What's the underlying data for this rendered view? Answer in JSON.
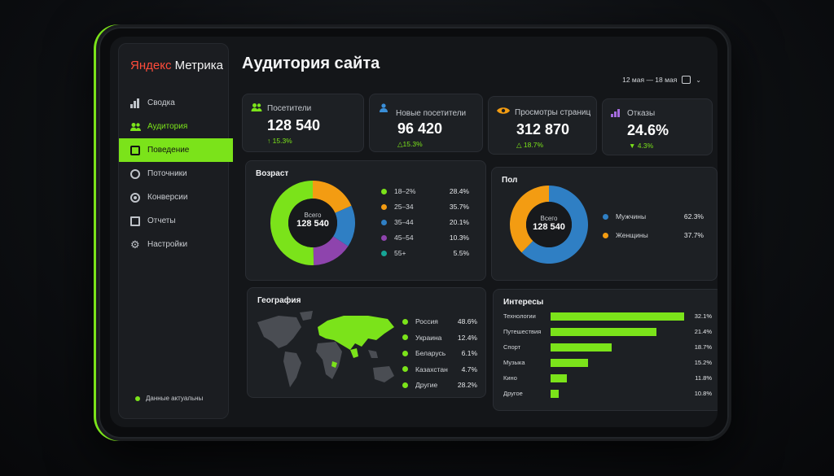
{
  "colors": {
    "accent": "#7be31a",
    "orange": "#f39c12",
    "blue": "#2f7fc4",
    "purple": "#8e44ad",
    "teal": "#16a596"
  },
  "sidebar": {
    "logo_brand": "Яндекс",
    "logo_product": "Метрика",
    "items": [
      {
        "label": "Сводка",
        "icon": "bar-chart-icon"
      },
      {
        "label": "Аудитория",
        "icon": "users-icon"
      },
      {
        "label": "Поведение",
        "icon": "square-icon"
      },
      {
        "label": "Поточники",
        "icon": "circle-icon"
      },
      {
        "label": "Конверсии",
        "icon": "target-icon"
      },
      {
        "label": "Отчеты",
        "icon": "document-icon"
      },
      {
        "label": "Настройки",
        "icon": "gear-icon"
      }
    ],
    "status": "Данные актуальны"
  },
  "header": {
    "title": "Аудитория сайта",
    "date_range": "12 мая — 18 мая"
  },
  "kpis": [
    {
      "label": "Посетители",
      "value": "128 540",
      "delta": "15.3%",
      "arrow": "↑",
      "icon": "users-icon"
    },
    {
      "label": "Новые посетители",
      "value": "96 420",
      "delta": "15.3%",
      "arrow": "△",
      "icon": "user-icon"
    },
    {
      "label": "Просмотры страниц",
      "value": "312 870",
      "delta": "18.7%",
      "arrow": "△",
      "icon": "eye-icon"
    },
    {
      "label": "Отказы",
      "value": "24.6%",
      "delta": "4.3%",
      "arrow": "▼",
      "icon": "bar-chart-icon"
    }
  ],
  "age": {
    "title": "Возраст",
    "center_label": "Всего",
    "center_value": "128 540",
    "rows": [
      {
        "label": "18–2%",
        "value": "28.4%"
      },
      {
        "label": "25–34",
        "value": "35.7%"
      },
      {
        "label": "35–44",
        "value": "20.1%"
      },
      {
        "label": "45–54",
        "value": "10.3%"
      },
      {
        "label": "55+",
        "value": "5.5%"
      }
    ]
  },
  "gender": {
    "title": "Пол",
    "center_label": "Всего",
    "center_value": "128 540",
    "rows": [
      {
        "label": "Мужчины",
        "value": "62.3%"
      },
      {
        "label": "Женщины",
        "value": "37.7%"
      }
    ]
  },
  "geo": {
    "title": "География",
    "rows": [
      {
        "label": "Россия",
        "value": "48.6%"
      },
      {
        "label": "Украина",
        "value": "12.4%"
      },
      {
        "label": "Беларусь",
        "value": "6.1%"
      },
      {
        "label": "Казахстан",
        "value": "4.7%"
      },
      {
        "label": "Другие",
        "value": "28.2%"
      }
    ]
  },
  "interests": {
    "title": "Интересы",
    "rows": [
      {
        "label": "Технологии",
        "value": "32.1%",
        "level": 1.0
      },
      {
        "label": "Путешествия",
        "value": "21.4%",
        "level": 0.79
      },
      {
        "label": "Спорт",
        "value": "18.7%",
        "level": 0.46
      },
      {
        "label": "Музыка",
        "value": "15.2%",
        "level": 0.28
      },
      {
        "label": "Кино",
        "value": "11.8%",
        "level": 0.12
      },
      {
        "label": "Другое",
        "value": "10.8%",
        "level": 0.06
      }
    ]
  }
}
